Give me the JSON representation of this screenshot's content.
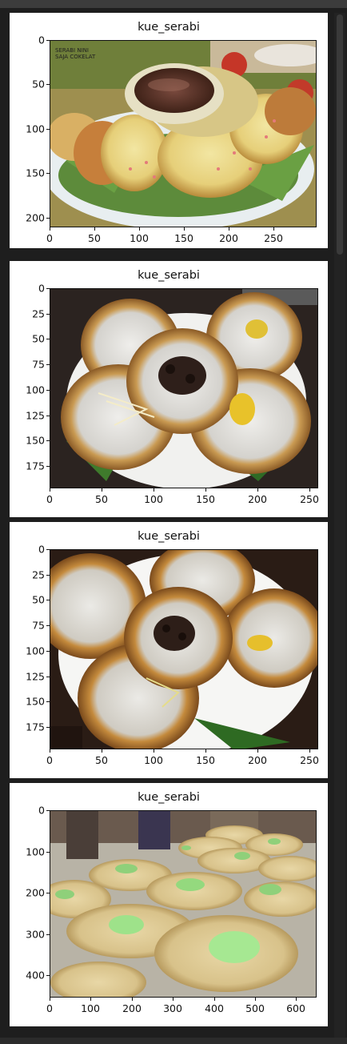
{
  "panels": [
    {
      "title": "kue_serabi",
      "image_text": "SERABI NINI\nSAJA COKELAT",
      "y_ticks": [
        "0",
        "50",
        "100",
        "150",
        "200"
      ],
      "x_ticks": [
        "0",
        "50",
        "100",
        "150",
        "200",
        "250"
      ]
    },
    {
      "title": "kue_serabi",
      "y_ticks": [
        "0",
        "25",
        "50",
        "75",
        "100",
        "125",
        "150",
        "175"
      ],
      "x_ticks": [
        "0",
        "50",
        "100",
        "150",
        "200",
        "250"
      ]
    },
    {
      "title": "kue_serabi",
      "y_ticks": [
        "0",
        "25",
        "50",
        "75",
        "100",
        "125",
        "150",
        "175"
      ],
      "x_ticks": [
        "0",
        "50",
        "100",
        "150",
        "200",
        "250"
      ]
    },
    {
      "title": "kue_serabi",
      "y_ticks": [
        "0",
        "100",
        "200",
        "300",
        "400"
      ],
      "x_ticks": [
        "0",
        "100",
        "200",
        "300",
        "400",
        "500",
        "600"
      ]
    }
  ]
}
